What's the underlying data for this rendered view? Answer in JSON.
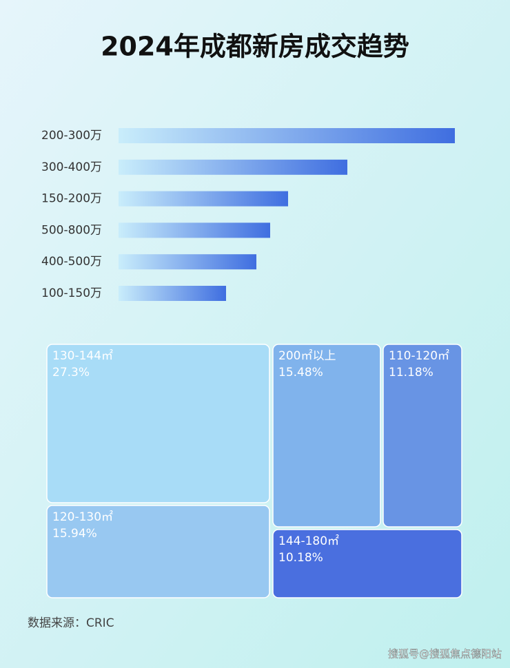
{
  "title": "2024年成都新房成交趋势",
  "chart_data": [
    {
      "type": "bar",
      "orientation": "horizontal",
      "categories": [
        "200-300万",
        "300-400万",
        "150-200万",
        "500-800万",
        "400-500万",
        "100-150万"
      ],
      "values": [
        488,
        332,
        246,
        220,
        200,
        156
      ],
      "color": "#3f6ee0"
    },
    {
      "type": "treemap",
      "categories": [
        "130-144㎡",
        "200㎡以上",
        "110-120㎡",
        "120-130㎡",
        "144-180㎡"
      ],
      "values": [
        27.3,
        15.48,
        11.18,
        15.94,
        10.18
      ],
      "value_labels": [
        "27.3%",
        "15.48%",
        "11.18%",
        "15.94%",
        "10.18%"
      ],
      "colors": [
        "#a8dcf7",
        "#80b3ec",
        "#6894e4",
        "#98c8f1",
        "#4a6fdf"
      ]
    }
  ],
  "source": "数据来源：CRIC",
  "watermark": "搜狐号@搜狐焦点德阳站"
}
